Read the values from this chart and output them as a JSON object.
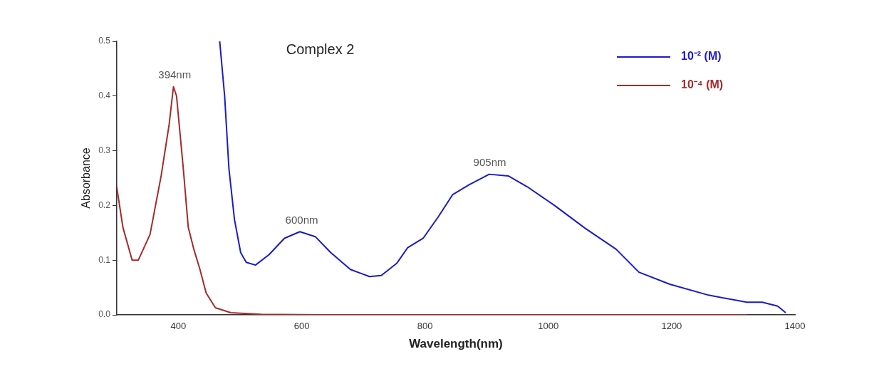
{
  "chart_data": {
    "type": "line",
    "title": "Complex 2",
    "xlabel": "Wavelength(nm)",
    "ylabel": "Absorbance",
    "xlim": [
      300,
      1400
    ],
    "xticks": [
      400,
      600,
      800,
      1000,
      1200,
      1400
    ],
    "ylim": [
      0,
      0.5
    ],
    "yticks": [
      {
        "value": 0,
        "label": "0.0"
      },
      {
        "value": 0.1,
        "label": "0.1"
      },
      {
        "value": 0.2,
        "label": "0.2"
      },
      {
        "value": 0.3,
        "label": "0.3"
      },
      {
        "value": 0.4,
        "label": "0.4"
      },
      {
        "value": 0.5,
        "label": "0.5"
      }
    ],
    "grid": false,
    "legend": "top right",
    "marker": "none",
    "line_style": "solid",
    "series": [
      {
        "name": "10⁻² (M)",
        "color": "#1a1acc",
        "x": [
          467,
          475,
          482,
          491,
          501,
          510,
          525,
          547,
          572,
          597,
          622,
          647,
          679,
          710,
          729,
          754,
          772,
          797,
          822,
          845,
          872,
          904,
          935,
          966,
          1010,
          1060,
          1110,
          1147,
          1197,
          1260,
          1322,
          1347,
          1372,
          1385
        ],
        "values": [
          0.5,
          0.4,
          0.267,
          0.174,
          0.114,
          0.096,
          0.091,
          0.11,
          0.14,
          0.152,
          0.143,
          0.114,
          0.083,
          0.07,
          0.072,
          0.094,
          0.123,
          0.14,
          0.18,
          0.22,
          0.238,
          0.257,
          0.254,
          0.234,
          0.2,
          0.158,
          0.12,
          0.078,
          0.056,
          0.036,
          0.023,
          0.023,
          0.016,
          0.004
        ]
      },
      {
        "name": "10⁻⁴ (M)",
        "color": "#a52a2a",
        "x": [
          300,
          310,
          325,
          335,
          354,
          372,
          385,
          392,
          397,
          408,
          416,
          425,
          435,
          445,
          460,
          485,
          535,
          635,
          1322
        ],
        "values": [
          0.234,
          0.16,
          0.1,
          0.1,
          0.147,
          0.254,
          0.348,
          0.417,
          0.4,
          0.267,
          0.16,
          0.12,
          0.083,
          0.04,
          0.013,
          0.004,
          0.001,
          0,
          0
        ]
      }
    ],
    "annotations": [
      {
        "text": "394nm",
        "x": 394,
        "y": 0.417
      },
      {
        "text": "600nm",
        "x": 600,
        "y": 0.152
      },
      {
        "text": "905nm",
        "x": 905,
        "y": 0.257
      }
    ]
  }
}
